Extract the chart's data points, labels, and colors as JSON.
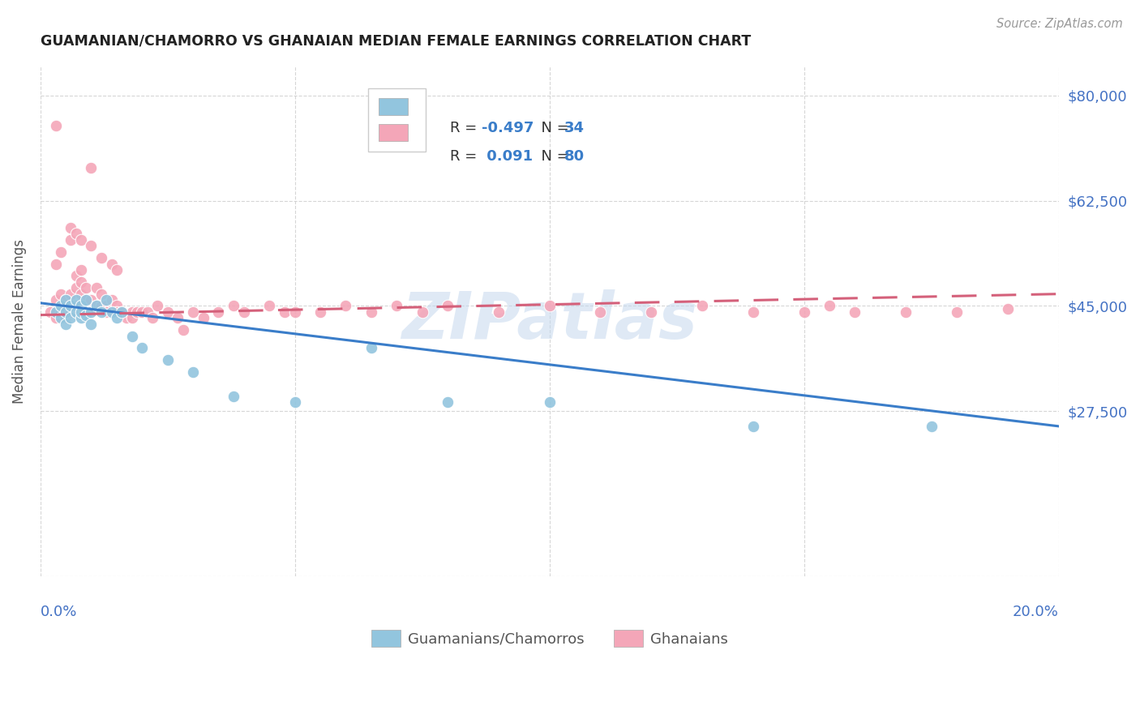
{
  "title": "GUAMANIAN/CHAMORRO VS GHANAIAN MEDIAN FEMALE EARNINGS CORRELATION CHART",
  "source": "Source: ZipAtlas.com",
  "ylabel": "Median Female Earnings",
  "legend_label_blue": "Guamanians/Chamorros",
  "legend_label_pink": "Ghanaians",
  "yticks": [
    0,
    27500,
    45000,
    62500,
    80000
  ],
  "xlim": [
    0.0,
    0.2
  ],
  "ylim": [
    0,
    85000
  ],
  "watermark": "ZIPatlas",
  "blue_color": "#92C5DE",
  "pink_color": "#F4A6B8",
  "blue_line_color": "#3A7DC9",
  "pink_line_color": "#D4607A",
  "axis_label_color": "#4472C4",
  "tick_label_color": "#4472C4",
  "blue_scatter_x": [
    0.003,
    0.004,
    0.004,
    0.005,
    0.005,
    0.005,
    0.006,
    0.006,
    0.007,
    0.007,
    0.008,
    0.008,
    0.008,
    0.009,
    0.009,
    0.01,
    0.01,
    0.011,
    0.012,
    0.013,
    0.014,
    0.015,
    0.016,
    0.018,
    0.02,
    0.025,
    0.03,
    0.038,
    0.05,
    0.065,
    0.08,
    0.1,
    0.14,
    0.175
  ],
  "blue_scatter_y": [
    44000,
    43000,
    45000,
    42000,
    44000,
    46000,
    43000,
    45000,
    44000,
    46000,
    43000,
    45000,
    44000,
    43500,
    46000,
    44000,
    42000,
    45000,
    44000,
    46000,
    44000,
    43000,
    44000,
    40000,
    38000,
    36000,
    34000,
    30000,
    29000,
    38000,
    29000,
    29000,
    25000,
    25000
  ],
  "pink_scatter_x": [
    0.002,
    0.003,
    0.003,
    0.004,
    0.004,
    0.005,
    0.005,
    0.005,
    0.006,
    0.006,
    0.006,
    0.007,
    0.007,
    0.007,
    0.008,
    0.008,
    0.008,
    0.009,
    0.009,
    0.009,
    0.01,
    0.01,
    0.011,
    0.011,
    0.012,
    0.012,
    0.013,
    0.013,
    0.014,
    0.015,
    0.015,
    0.016,
    0.017,
    0.018,
    0.018,
    0.019,
    0.02,
    0.021,
    0.022,
    0.023,
    0.025,
    0.027,
    0.028,
    0.03,
    0.032,
    0.035,
    0.038,
    0.04,
    0.045,
    0.048,
    0.05,
    0.055,
    0.06,
    0.065,
    0.07,
    0.075,
    0.08,
    0.09,
    0.1,
    0.11,
    0.12,
    0.13,
    0.14,
    0.15,
    0.155,
    0.16,
    0.17,
    0.18,
    0.19,
    0.003,
    0.004,
    0.006,
    0.006,
    0.007,
    0.008,
    0.01,
    0.012,
    0.014,
    0.015,
    0.003,
    0.01
  ],
  "pink_scatter_y": [
    44000,
    43000,
    46000,
    47000,
    44000,
    46000,
    43000,
    44000,
    45000,
    47000,
    44000,
    50000,
    48000,
    45000,
    51000,
    49000,
    47000,
    48000,
    46000,
    44000,
    46000,
    44000,
    48000,
    45000,
    47000,
    45000,
    45000,
    44000,
    46000,
    45000,
    44000,
    44000,
    43000,
    44000,
    43000,
    44000,
    44000,
    44000,
    43000,
    45000,
    44000,
    43000,
    41000,
    44000,
    43000,
    44000,
    45000,
    44000,
    45000,
    44000,
    44000,
    44000,
    45000,
    44000,
    45000,
    44000,
    45000,
    44000,
    45000,
    44000,
    44000,
    45000,
    44000,
    44000,
    45000,
    44000,
    44000,
    44000,
    44500,
    52000,
    54000,
    56000,
    58000,
    57000,
    56000,
    55000,
    53000,
    52000,
    51000,
    75000,
    68000
  ],
  "blue_line_x": [
    0.0,
    0.2
  ],
  "blue_line_y": [
    45500,
    25000
  ],
  "pink_line_x": [
    0.0,
    0.2
  ],
  "pink_line_y": [
    43500,
    47000
  ]
}
